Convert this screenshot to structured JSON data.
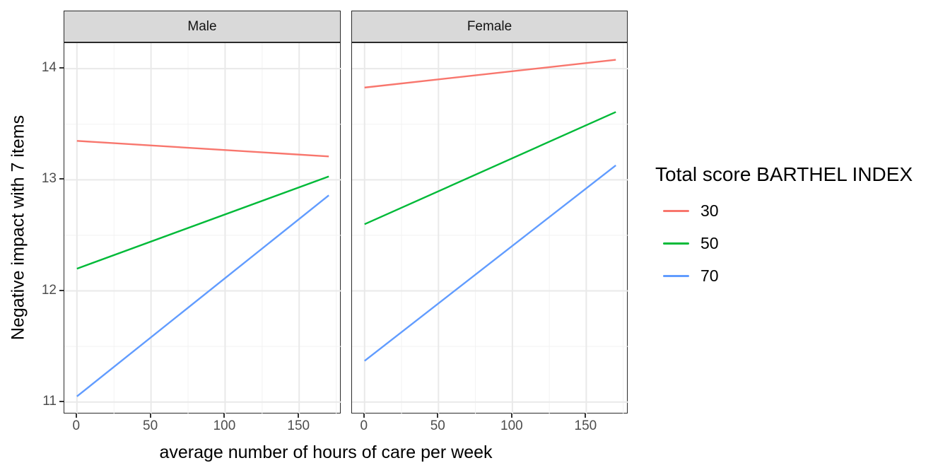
{
  "chart_data": {
    "type": "line",
    "title": "",
    "xlabel": "average number of hours of care per week",
    "ylabel": "Negative impact with 7 items",
    "x_ticks": [
      0,
      50,
      100,
      150
    ],
    "x_minor": [
      25,
      75,
      125,
      175
    ],
    "y_ticks": [
      11,
      12,
      13,
      14
    ],
    "y_minor": [
      11.5,
      12.5,
      13.5
    ],
    "xlim": [
      -8.5,
      178.5
    ],
    "ylim": [
      10.89,
      14.23
    ],
    "grid": true,
    "legend_position": "right",
    "facets": [
      {
        "label": "Male",
        "series": [
          {
            "name": "30",
            "color": "#F8766D",
            "x": [
              0,
              170
            ],
            "y": [
              13.35,
              13.21
            ]
          },
          {
            "name": "50",
            "color": "#00BA38",
            "x": [
              0,
              170
            ],
            "y": [
              12.2,
              13.03
            ]
          },
          {
            "name": "70",
            "color": "#619CFF",
            "x": [
              0,
              170
            ],
            "y": [
              11.05,
              12.86
            ]
          }
        ]
      },
      {
        "label": "Female",
        "series": [
          {
            "name": "30",
            "color": "#F8766D",
            "x": [
              0,
              170
            ],
            "y": [
              13.83,
              14.08
            ]
          },
          {
            "name": "50",
            "color": "#00BA38",
            "x": [
              0,
              170
            ],
            "y": [
              12.6,
              13.61
            ]
          },
          {
            "name": "70",
            "color": "#619CFF",
            "x": [
              0,
              170
            ],
            "y": [
              11.37,
              13.13
            ]
          }
        ]
      }
    ],
    "legend": {
      "title": "Total score BARTHEL INDEX",
      "entries": [
        {
          "label": "30",
          "color": "#F8766D"
        },
        {
          "label": "50",
          "color": "#00BA38"
        },
        {
          "label": "70",
          "color": "#619CFF"
        }
      ]
    }
  }
}
